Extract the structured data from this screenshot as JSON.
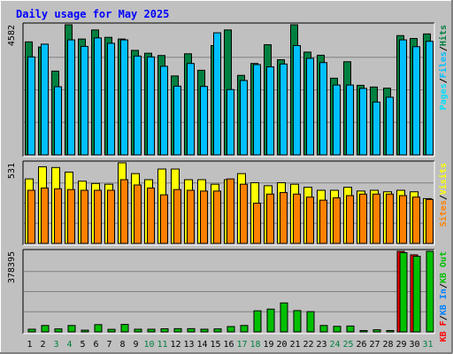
{
  "chart_data": {
    "type": "bar",
    "title": "Daily usage for May 2025",
    "x": [
      "1",
      "2",
      "3",
      "4",
      "5",
      "6",
      "7",
      "8",
      "9",
      "10",
      "11",
      "12",
      "13",
      "14",
      "15",
      "16",
      "17",
      "18",
      "19",
      "20",
      "21",
      "22",
      "23",
      "24",
      "25",
      "26",
      "27",
      "28",
      "29",
      "30",
      "31"
    ],
    "weekend_days": [
      "3",
      "4",
      "10",
      "11",
      "17",
      "18",
      "24",
      "25",
      "31"
    ],
    "panels": [
      {
        "id": "hits-files-pages",
        "max_label": "4582",
        "legend": [
          "Pages",
          "/",
          "Files",
          "/",
          "Hits"
        ],
        "ylim": [
          0,
          4582
        ],
        "series": [
          {
            "name": "Hits",
            "color": "#008040",
            "values": [
              3980,
              3800,
              2950,
              4582,
              4080,
              4400,
              4140,
              4080,
              3680,
              3580,
              3500,
              2780,
              3560,
              2980,
              3850,
              4400,
              2800,
              3220,
              3880,
              3350,
              4582,
              3620,
              3510,
              2700,
              3280,
              2450,
              2390,
              2350,
              4200,
              4100,
              4260
            ]
          },
          {
            "name": "Files",
            "color": "#00c0ff",
            "values": [
              3450,
              3900,
              2400,
              4050,
              3820,
              4120,
              3930,
              4050,
              3480,
              3450,
              3120,
              2420,
              3220,
              2410,
              4300,
              2300,
              2620,
              3180,
              3100,
              3200,
              3850,
              3400,
              3250,
              2460,
              2460,
              2340,
              1860,
              2030,
              4050,
              3810,
              4000
            ]
          },
          {
            "name": "Pages",
            "color": "#00e0ff",
            "values": [
              0,
              0,
              0,
              0,
              0,
              0,
              0,
              0,
              0,
              0,
              0,
              0,
              0,
              0,
              0,
              0,
              0,
              0,
              0,
              0,
              0,
              0,
              0,
              0,
              0,
              0,
              0,
              0,
              0,
              0,
              0
            ]
          }
        ]
      },
      {
        "id": "sites-visits",
        "max_label": "531",
        "legend": [
          "Sites",
          "/",
          "Visits"
        ],
        "ylim": [
          0,
          531
        ],
        "series": [
          {
            "name": "Visits",
            "color": "#ffff00",
            "values": [
              425,
              505,
              500,
              470,
              410,
              395,
              390,
              531,
              460,
              420,
              490,
              490,
              420,
              420,
              390,
              420,
              460,
              400,
              380,
              400,
              390,
              370,
              350,
              350,
              370,
              345,
              350,
              340,
              350,
              340,
              295
            ]
          },
          {
            "name": "Sites",
            "color": "#ff8000",
            "values": [
              350,
              365,
              360,
              355,
              350,
              350,
              350,
              420,
              385,
              365,
              320,
              355,
              350,
              345,
              345,
              425,
              390,
              265,
              325,
              335,
              325,
              305,
              285,
              300,
              315,
              325,
              325,
              325,
              315,
              305,
              290
            ]
          }
        ]
      },
      {
        "id": "kbytes",
        "max_label": "378395",
        "legend": [
          "KB F",
          "/",
          "KB In",
          "/",
          "KB Out"
        ],
        "ylim": [
          0,
          378395
        ],
        "series": [
          {
            "name": "KB F",
            "color": "#ff0000",
            "values": [
              0,
              0,
              0,
              0,
              0,
              0,
              0,
              0,
              0,
              0,
              0,
              0,
              0,
              0,
              0,
              0,
              0,
              0,
              0,
              0,
              0,
              0,
              0,
              0,
              0,
              0,
              0,
              0,
              378395,
              362000,
              0
            ]
          },
          {
            "name": "KB In",
            "color": "#0080ff",
            "values": [
              0,
              0,
              0,
              0,
              0,
              0,
              0,
              0,
              0,
              0,
              0,
              0,
              0,
              0,
              0,
              0,
              0,
              0,
              0,
              0,
              0,
              0,
              0,
              0,
              0,
              0,
              0,
              0,
              0,
              0,
              0
            ]
          },
          {
            "name": "KB Out",
            "color": "#00c000",
            "values": [
              12500,
              30000,
              14000,
              30000,
              8000,
              34000,
              12000,
              35000,
              12500,
              12500,
              14500,
              15000,
              15000,
              12500,
              14000,
              25000,
              30000,
              99000,
              107000,
              136000,
              100000,
              95000,
              30000,
              26000,
              27500,
              6200,
              10000,
              6200,
              372000,
              355000,
              378395
            ]
          }
        ]
      }
    ]
  },
  "colors": {
    "background": "#c0c0c0",
    "title": "#0000ff",
    "weekday_label": "#000000",
    "weekend_label": "#008040",
    "legend_slash": "#000000"
  }
}
